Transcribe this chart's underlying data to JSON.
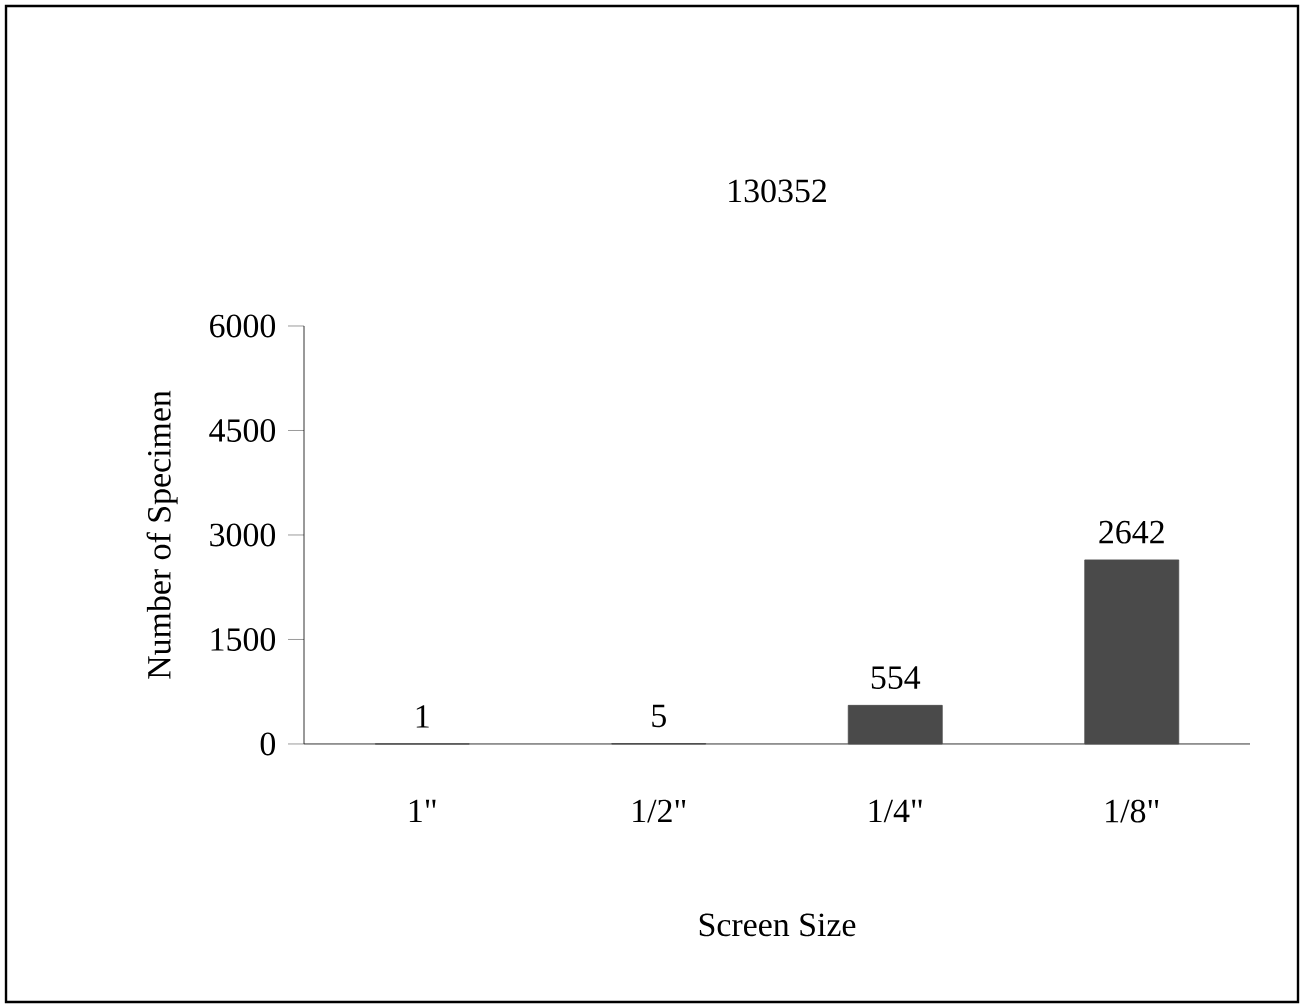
{
  "chart_data": {
    "type": "bar",
    "title": "130352",
    "xlabel": "Screen Size",
    "ylabel": "Number of Specimen",
    "categories": [
      "1\"",
      "1/2\"",
      "1/4\"",
      "1/8\""
    ],
    "values": [
      1,
      5,
      554,
      2642
    ],
    "color": "#4a4a4a",
    "ylim": [
      0,
      6000
    ],
    "yticks": [
      0,
      1500,
      3000,
      4500,
      6000
    ],
    "data_labels": true
  }
}
